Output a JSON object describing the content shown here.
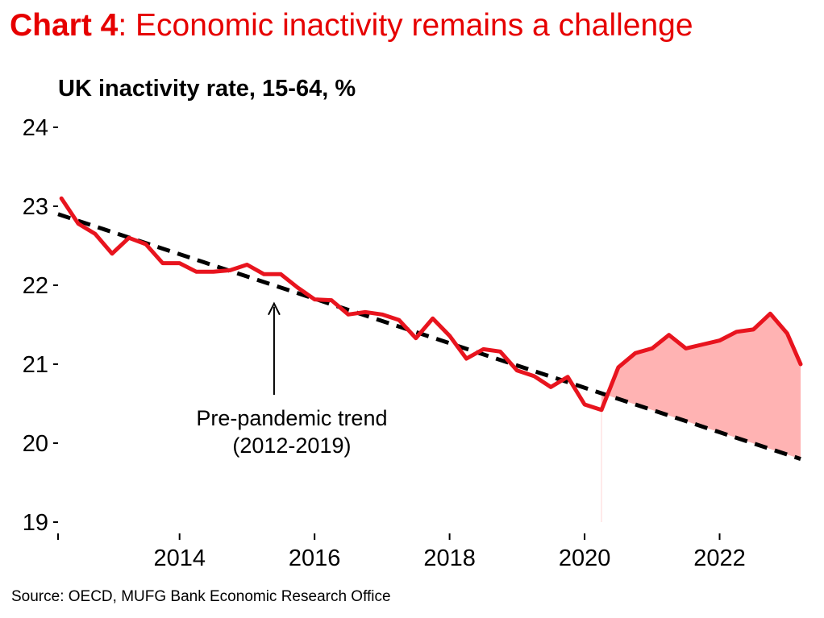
{
  "header": {
    "title_bold": "Chart 4",
    "title_rest": ": Economic inactivity remains a challenge"
  },
  "footer": {
    "source": "Source: OECD, MUFG Bank Economic Research Office"
  },
  "colors": {
    "accent": "#e60000",
    "series": "#e8141e",
    "shade": "#ffb3b3",
    "trend": "#000000"
  },
  "chart_data": {
    "type": "line",
    "title": "UK inactivity rate, 15-64, %",
    "xlabel": "",
    "ylabel": "",
    "xlim": [
      2012.2,
      2023.2
    ],
    "ylim": [
      19,
      24
    ],
    "x_ticks": [
      2014,
      2016,
      2018,
      2020,
      2022
    ],
    "y_ticks": [
      19,
      20,
      21,
      22,
      23,
      24
    ],
    "grid": false,
    "legend": "none",
    "series": [
      {
        "x": [
          2012.25,
          2012.5,
          2012.75,
          2013.0,
          2013.25,
          2013.5,
          2013.75,
          2014.0,
          2014.25,
          2014.5,
          2014.75,
          2015.0,
          2015.25,
          2015.5,
          2015.75,
          2016.0,
          2016.25,
          2016.5,
          2016.75,
          2017.0,
          2017.25,
          2017.5,
          2017.75,
          2018.0,
          2018.25,
          2018.5,
          2018.75,
          2019.0,
          2019.25,
          2019.5,
          2019.75,
          2020.0,
          2020.25,
          2020.5,
          2020.75,
          2021.0,
          2021.25,
          2021.5,
          2021.75,
          2022.0,
          2022.25,
          2022.5,
          2022.75,
          2023.0,
          2023.2
        ],
        "values": [
          23.1,
          22.78,
          22.65,
          22.4,
          22.6,
          22.52,
          22.28,
          22.28,
          22.17,
          22.17,
          22.19,
          22.26,
          22.14,
          22.14,
          21.97,
          21.82,
          21.81,
          21.63,
          21.66,
          21.63,
          21.56,
          21.33,
          21.58,
          21.36,
          21.07,
          21.19,
          21.16,
          20.92,
          20.85,
          20.71,
          20.84,
          20.49,
          20.42,
          20.96,
          21.14,
          21.2,
          21.37,
          21.2,
          21.25,
          21.3,
          21.41,
          21.44,
          21.64,
          21.39,
          21.0
        ]
      },
      {
        "dashed": true,
        "x": [
          2012.2,
          2023.2
        ],
        "values": [
          22.9,
          19.8
        ]
      }
    ],
    "shaded_from_x": 2020.25,
    "annotations": [
      {
        "text_line1": "Pre-pandemic trend",
        "text_line2": "(2012-2019)",
        "x": 2015.4,
        "y": 21.85
      }
    ]
  }
}
